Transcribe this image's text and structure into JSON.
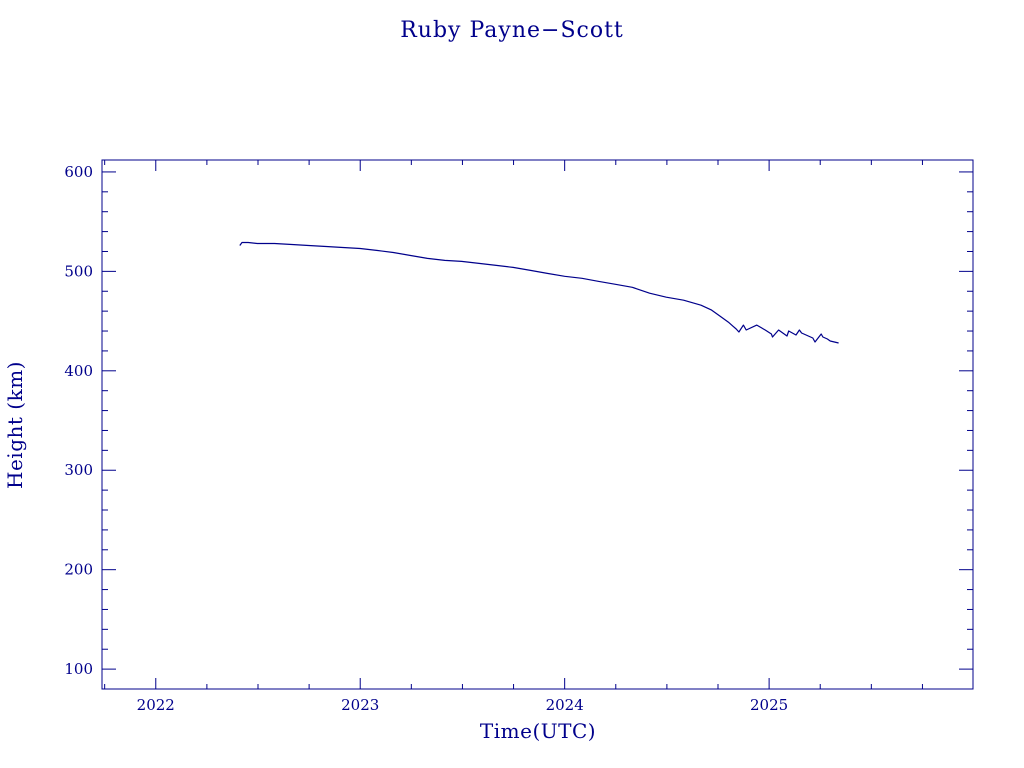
{
  "chart_data": {
    "type": "line",
    "title": "Ruby Payne−Scott",
    "xlabel": "Time(UTC)",
    "ylabel": "Height (km)",
    "xlim": [
      "2021-09-27",
      "2025-12-31"
    ],
    "ylim": [
      80,
      612
    ],
    "x_ticks": [
      "2022",
      "2023",
      "2024",
      "2025"
    ],
    "y_ticks": [
      "100",
      "200",
      "300",
      "400",
      "500",
      "600"
    ],
    "grid": false,
    "line_color": "#00008b",
    "series": [
      {
        "x": [
          "2022-05-31",
          "2022-06-04",
          "2022-06-15",
          "2022-07-01",
          "2022-08-01",
          "2022-09-01",
          "2022-10-01",
          "2022-11-01",
          "2022-12-01",
          "2023-01-01",
          "2023-02-01",
          "2023-03-01",
          "2023-04-01",
          "2023-05-01",
          "2023-06-01",
          "2023-07-01",
          "2023-08-01",
          "2023-09-01",
          "2023-10-01",
          "2023-11-01",
          "2023-12-01",
          "2024-01-01",
          "2024-02-01",
          "2024-03-01",
          "2024-04-01",
          "2024-05-01",
          "2024-06-01",
          "2024-07-01",
          "2024-08-01",
          "2024-09-01",
          "2024-09-20",
          "2024-10-05",
          "2024-10-20",
          "2024-10-28",
          "2024-11-03",
          "2024-11-08",
          "2024-11-16",
          "2024-11-21",
          "2024-12-10",
          "2024-12-25",
          "2025-01-05",
          "2025-01-07",
          "2025-01-18",
          "2025-02-02",
          "2025-02-05",
          "2025-02-18",
          "2025-02-24",
          "2025-02-28",
          "2025-03-20",
          "2025-03-24",
          "2025-04-04",
          "2025-04-07",
          "2025-04-15",
          "2025-04-20",
          "2025-05-05"
        ],
        "y": [
          526,
          529,
          529,
          528,
          528,
          527,
          526,
          525,
          524,
          523,
          521,
          519,
          516,
          513,
          511,
          510,
          508,
          506,
          504,
          501,
          498,
          495,
          493,
          490,
          487,
          484,
          478,
          474,
          471,
          466,
          461,
          455,
          449,
          445,
          442,
          439,
          446,
          441,
          446,
          441,
          437,
          434,
          441,
          435,
          440,
          436,
          441,
          438,
          433,
          429,
          437,
          434,
          432,
          430,
          428
        ]
      }
    ]
  }
}
